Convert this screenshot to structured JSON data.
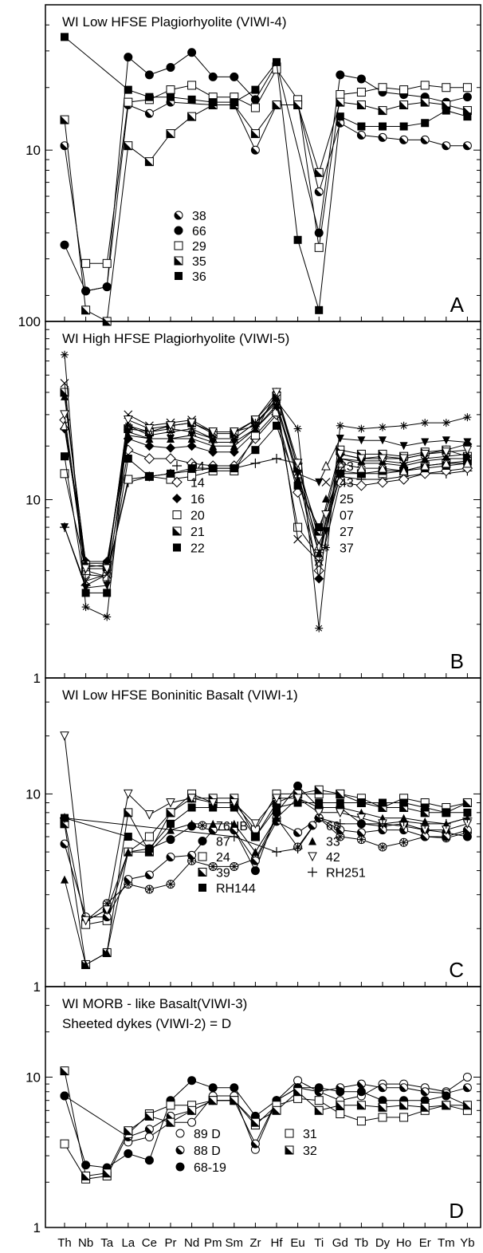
{
  "chart_data": {
    "type": "line",
    "x": [
      "Th",
      "Nb",
      "Ta",
      "La",
      "Ce",
      "Pr",
      "Nd",
      "Pm",
      "Sm",
      "Zr",
      "Hf",
      "Eu",
      "Ti",
      "Gd",
      "Tb",
      "Dy",
      "Ho",
      "Er",
      "Tm",
      "Yb"
    ],
    "log_y": true,
    "panels": [
      {
        "title": "WI  Low HFSE Plagiorhyolite (VIWI-4)",
        "letter": "A",
        "ylim": [
          1.5,
          50
        ],
        "yticks": [
          {
            "v": 10,
            "label": "10"
          }
        ],
        "series": [
          {
            "name": "38",
            "marker": "half-circle",
            "values": [
              10.5,
              2.1,
              2.2,
              16.5,
              15,
              17,
              null,
              16.5,
              16.5,
              10,
              16.5,
              16.5,
              6.3,
              13.5,
              11.8,
              11.5,
              11.2,
              11.2,
              10.5,
              10.5
            ]
          },
          {
            "name": "66",
            "marker": "filled-circle",
            "values": [
              3.5,
              2.1,
              2.2,
              28,
              23,
              25,
              29.5,
              22.5,
              22.5,
              17.5,
              26,
              null,
              4,
              23,
              22,
              19,
              18.5,
              18,
              17,
              18
            ]
          },
          {
            "name": "29",
            "marker": "open-square",
            "values": [
              null,
              2.85,
              2.85,
              17,
              17.5,
              19.5,
              20.5,
              18,
              18,
              16,
              24.5,
              17.5,
              3.4,
              18.5,
              19,
              20,
              19.5,
              20.5,
              20,
              20
            ]
          },
          {
            "name": "35",
            "marker": "half-square",
            "values": [
              14,
              1.7,
              1.5,
              10.5,
              8.8,
              12,
              14.5,
              16.5,
              16.5,
              12,
              16.5,
              16.5,
              7.8,
              17,
              16.5,
              15.5,
              16.5,
              17,
              16.5,
              15.5
            ]
          },
          {
            "name": "36",
            "marker": "filled-square",
            "values": [
              35,
              null,
              null,
              19.5,
              18,
              18,
              17.5,
              17,
              17,
              19.5,
              26.5,
              3.7,
              1.7,
              14.5,
              13,
              13,
              13,
              13.5,
              15.5,
              14.5
            ]
          }
        ],
        "legend": [
          [
            "38",
            "66",
            "29",
            "35",
            "36"
          ]
        ]
      },
      {
        "title": "WI  High HFSE  Plagiorhyolite (VIWI-5)",
        "letter": "B",
        "ylim": [
          1,
          100
        ],
        "yticks": [
          {
            "v": 100,
            "label": "100"
          },
          {
            "v": 10,
            "label": "10"
          },
          {
            "v": 1,
            "label": "1"
          }
        ],
        "series": [
          {
            "name": "94",
            "marker": "plus",
            "values": [
              7,
              3.3,
              3.8,
              12.5,
              13.5,
              14,
              14.5,
              15,
              15,
              16,
              17,
              16,
              5,
              13.5,
              13,
              13,
              13.5,
              14,
              14,
              14.5
            ]
          },
          {
            "name": "14",
            "marker": "open-diamond",
            "values": [
              28,
              3.8,
              3.7,
              19,
              17,
              17,
              16,
              15.5,
              15.5,
              22,
              30,
              11,
              4,
              12.5,
              12,
              12.5,
              13,
              14,
              14.5,
              15
            ]
          },
          {
            "name": "16",
            "marker": "filled-diamond",
            "values": [
              25,
              4.5,
              4.5,
              22,
              20,
              19.5,
              20,
              18.5,
              18.5,
              24,
              40,
              15,
              3.6,
              18,
              17,
              17.5,
              17,
              18,
              19,
              20.5
            ]
          },
          {
            "name": "20",
            "marker": "open-square",
            "values": [
              14,
              4,
              3.7,
              13,
              13.5,
              13,
              13.5,
              14.5,
              14.5,
              23,
              31,
              7,
              4.8,
              14.5,
              14,
              14,
              14.5,
              15.5,
              16,
              16.5
            ]
          },
          {
            "name": "21",
            "marker": "half-square",
            "values": [
              40,
              4.3,
              4.2,
              25,
              24,
              26,
              27,
              23.5,
              23.5,
              28,
              38,
              15,
              6.5,
              19,
              18,
              18,
              17.5,
              18.5,
              19,
              17.5
            ]
          },
          {
            "name": "22",
            "marker": "filled-square",
            "values": [
              17.5,
              3,
              3,
              17,
              13.5,
              14,
              15,
              15,
              15,
              19,
              26,
              12,
              7,
              14,
              14,
              14.5,
              14.5,
              15,
              15.5,
              16
            ]
          },
          {
            "name": "23",
            "marker": "open-triangle",
            "values": [
              26,
              4.2,
              4.3,
              26,
              24,
              25,
              24,
              22,
              22,
              27,
              35,
              14,
              5.5,
              16,
              15,
              15,
              14.5,
              15.5,
              16,
              16
            ]
          },
          {
            "name": "43",
            "marker": "cross",
            "values": [
              45,
              3.5,
              3.8,
              30,
              26,
              27,
              28,
              24,
              24,
              26,
              37,
              6,
              4.5,
              17,
              16,
              16,
              15.5,
              16.5,
              17,
              17
            ]
          },
          {
            "name": "25",
            "marker": "filled-triangle",
            "values": [
              38,
              4.4,
              4.4,
              23,
              22,
              22,
              22,
              20,
              20,
              25,
              34,
              13,
              5,
              17,
              16.5,
              16.5,
              16,
              17,
              17.5,
              18
            ]
          },
          {
            "name": "07",
            "marker": "open-triangle-down",
            "values": [
              30,
              4.1,
              4.1,
              28,
              25,
              26,
              27,
              24,
              24,
              28,
              40,
              16,
              6,
              18,
              17,
              17,
              17,
              18,
              18.5,
              19
            ]
          },
          {
            "name": "27",
            "marker": "filled-triangle-down",
            "values": [
              7,
              3.2,
              3.3,
              24,
              22,
              22,
              23,
              21,
              21,
              25,
              33,
              14,
              12.5,
              22,
              21.5,
              21.5,
              20,
              21,
              21.5,
              21
            ]
          },
          {
            "name": "37",
            "marker": "asterisk",
            "values": [
              65,
              2.5,
              2.2,
              26,
              23,
              24,
              25,
              22,
              22,
              27,
              36,
              25,
              1.9,
              26,
              25,
              25.5,
              26,
              27,
              27,
              29
            ]
          }
        ],
        "legend": [
          [
            "94",
            "14",
            "16",
            "20",
            "21",
            "22"
          ],
          [
            "23",
            "43",
            "25",
            "07",
            "27",
            "37"
          ]
        ]
      },
      {
        "title": "WI  Low HFSE Boninitic Basalt (VIWI-1)",
        "letter": "C",
        "ylim": [
          1,
          40
        ],
        "yticks": [
          {
            "v": 10,
            "label": "10"
          },
          {
            "v": 1,
            "label": "1"
          }
        ],
        "series": [
          {
            "name": "76HB",
            "marker": "asterisk-circle",
            "values": [
              null,
              2.2,
              2.7,
              3.4,
              3.2,
              3.4,
              4.5,
              4.2,
              4.2,
              4.6,
              7.5,
              5.3,
              7.5,
              6,
              5.8,
              5.3,
              5.6,
              6,
              5.9,
              6.3
            ]
          },
          {
            "name": "87",
            "marker": "filled-circle",
            "values": [
              null,
              2.2,
              2.5,
              5,
              5.2,
              5.8,
              6.8,
              6.5,
              6.5,
              4,
              8,
              11,
              8.5,
              8.5,
              7,
              6.8,
              7,
              6.5,
              6.3,
              6
            ]
          },
          {
            "name": "24",
            "marker": "open-square",
            "values": [
              7.2,
              2.1,
              2.2,
              5,
              6,
              8,
              10,
              9,
              9,
              6.5,
              10,
              10,
              10,
              10,
              9.5,
              8.5,
              9.5,
              9,
              8.5,
              9
            ]
          },
          {
            "name": "39",
            "marker": "half-square",
            "values": [
              7,
              1.3,
              1.5,
              8,
              5,
              8,
              9.5,
              9.5,
              9.5,
              6,
              9,
              10,
              10.5,
              10,
              9,
              8.5,
              8.5,
              8,
              8,
              9
            ]
          },
          {
            "name": "RH144",
            "marker": "filled-square",
            "values": [
              7.5,
              null,
              null,
              6,
              5.2,
              7,
              8.5,
              8.5,
              8.5,
              6,
              8.5,
              9,
              9,
              9,
              9,
              9,
              9,
              8.5,
              8,
              8
            ]
          },
          {
            "name": "68",
            "marker": "half-circle",
            "values": [
              5.5,
              2.3,
              2.3,
              3.6,
              3.8,
              4.7,
              4.8,
              6.5,
              6.5,
              4.5,
              7.2,
              6.3,
              7.5,
              6.5,
              6.3,
              6.5,
              6.5,
              6,
              6,
              6.5
            ]
          },
          {
            "name": "33",
            "marker": "filled-triangle",
            "values": [
              3.6,
              1.3,
              1.5,
              5,
              5,
              6.5,
              7,
              7,
              7,
              5,
              7.5,
              9.5,
              8.5,
              8.5,
              8,
              7.5,
              7.5,
              7.2,
              7,
              7.5
            ]
          },
          {
            "name": "42",
            "marker": "open-triangle-down",
            "values": [
              20,
              2.2,
              2.5,
              10,
              7.8,
              9,
              9.5,
              9,
              9,
              7,
              9.5,
              9.5,
              8,
              8,
              7.5,
              7,
              6.8,
              6.5,
              6.5,
              7
            ]
          },
          {
            "name": "RH251",
            "marker": "plus",
            "values": [
              7.5,
              null,
              null,
              null,
              null,
              null,
              null,
              null,
              6,
              null,
              5,
              5.2,
              7.5,
              7,
              7,
              7,
              7.2,
              7,
              7,
              7.5
            ]
          }
        ],
        "legend": [
          [
            "76HB",
            "87",
            "24",
            "39",
            "RH144"
          ],
          [
            "68",
            "33",
            "42",
            "RH251"
          ]
        ]
      },
      {
        "title": "WI  MORB - like Basalt(VIWI-3)",
        "subtitle": "Sheeted dykes (VIWI-2) = D",
        "letter": "D",
        "ylim": [
          1,
          40
        ],
        "yticks": [
          {
            "v": 10,
            "label": "10"
          },
          {
            "v": 1,
            "label": "1"
          }
        ],
        "series": [
          {
            "name": "89 D",
            "marker": "open-circle",
            "values": [
              null,
              null,
              null,
              3.7,
              4,
              5,
              5,
              7.5,
              7.5,
              3.3,
              7,
              9.5,
              8,
              7,
              7.5,
              9,
              9,
              8.5,
              8,
              10
            ]
          },
          {
            "name": "88 D",
            "marker": "half-circle",
            "values": [
              7.5,
              null,
              null,
              4,
              4.5,
              5.5,
              6,
              7,
              7,
              3.6,
              7,
              8.5,
              8,
              8.5,
              9,
              8.5,
              8.5,
              8,
              7.8,
              8.5
            ]
          },
          {
            "name": "68-19",
            "marker": "filled-circle",
            "values": [
              7.5,
              2.6,
              2.5,
              3.1,
              2.8,
              7,
              9.5,
              8.5,
              8.5,
              5.5,
              7,
              8.5,
              8.5,
              8,
              8,
              7,
              7,
              7,
              7.5,
              6.5
            ]
          },
          {
            "name": "31",
            "marker": "open-square",
            "values": [
              3.6,
              2.1,
              2.2,
              4.2,
              5.7,
              6.5,
              6.5,
              7,
              7,
              4.8,
              6.5,
              7.2,
              7,
              5.7,
              5.1,
              5.4,
              5.4,
              6,
              6.5,
              6
            ]
          },
          {
            "name": "32",
            "marker": "half-square",
            "values": [
              11,
              2.2,
              2.3,
              4.4,
              5.5,
              5,
              6,
              7,
              7,
              5,
              6,
              8,
              6,
              6.5,
              6.5,
              6.3,
              6.5,
              6.3,
              6.5,
              6.5
            ]
          }
        ],
        "legend": [
          [
            "89 D",
            "88 D",
            "68-19"
          ],
          [
            "31",
            "32"
          ]
        ]
      }
    ]
  }
}
